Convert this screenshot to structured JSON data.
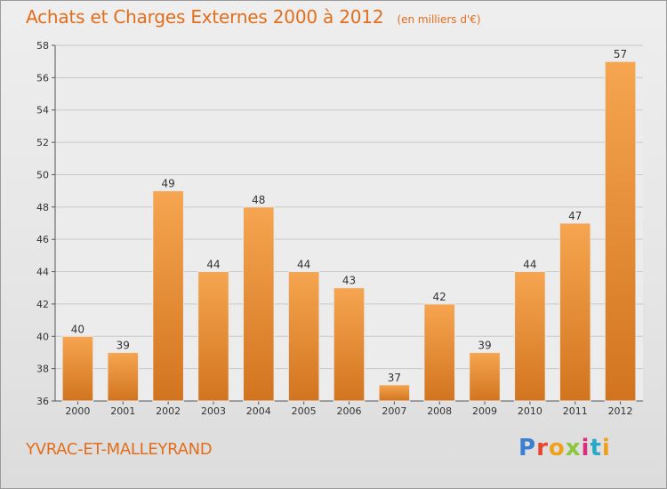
{
  "header": {
    "title": "Achats et Charges Externes 2000 à 2012",
    "subtitle": "(en milliers d'€)"
  },
  "footer": {
    "commune": "YVRAC-ET-MALLEYRAND",
    "logo_text": "Proxiti",
    "logo_colors": [
      "#3a7fd1",
      "#e8452c",
      "#f0a11a",
      "#8cc63f",
      "#d8307e",
      "#2aa8c7",
      "#f0a11a"
    ]
  },
  "colors": {
    "bar_light": "#f6a550",
    "bar_dark": "#d2741f",
    "title": "#e26e1c",
    "grid": "#c8c8c8",
    "axis": "#555555"
  },
  "chart_data": {
    "type": "bar",
    "title": "Achats et Charges Externes 2000 à 2012",
    "subtitle": "(en milliers d'€)",
    "xlabel": "",
    "ylabel": "",
    "categories": [
      "2000",
      "2001",
      "2002",
      "2003",
      "2004",
      "2005",
      "2006",
      "2007",
      "2008",
      "2009",
      "2010",
      "2011",
      "2012"
    ],
    "values": [
      40,
      39,
      49,
      44,
      48,
      44,
      43,
      37,
      42,
      39,
      44,
      47,
      57
    ],
    "ylim": [
      36,
      58
    ],
    "yticks": [
      36,
      38,
      40,
      42,
      44,
      46,
      48,
      50,
      52,
      54,
      56,
      58
    ],
    "grid": true,
    "legend": "none"
  }
}
